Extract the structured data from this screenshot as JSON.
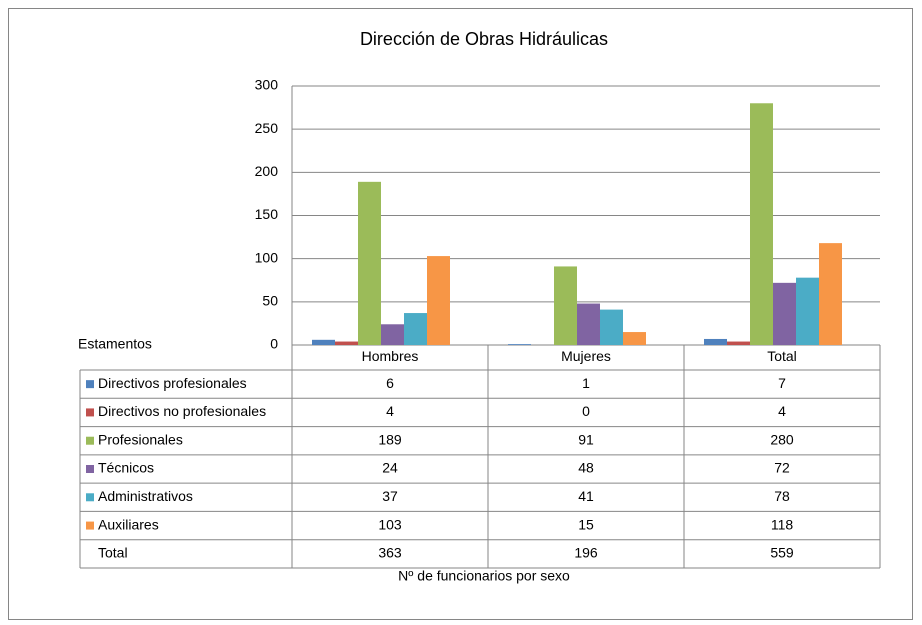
{
  "chart_data": {
    "type": "bar",
    "title": "Dirección de Obras Hidráulicas",
    "x_label": "Nº de funcionarios por sexo",
    "table_header": "Estamentos",
    "categories": [
      "Hombres",
      "Mujeres",
      "Total"
    ],
    "series": [
      {
        "name": "Directivos profesionales",
        "color": "#4f81bd",
        "values": [
          6,
          1,
          7
        ]
      },
      {
        "name": "Directivos no profesionales",
        "color": "#c0504d",
        "values": [
          4,
          0,
          4
        ]
      },
      {
        "name": "Profesionales",
        "color": "#9bbb59",
        "values": [
          189,
          91,
          280
        ]
      },
      {
        "name": "Técnicos",
        "color": "#8064a2",
        "values": [
          24,
          48,
          72
        ]
      },
      {
        "name": "Administrativos",
        "color": "#4bacc6",
        "values": [
          37,
          41,
          78
        ]
      },
      {
        "name": "Auxiliares",
        "color": "#f79646",
        "values": [
          103,
          15,
          118
        ]
      }
    ],
    "total_row": {
      "label": "Total",
      "values": [
        363,
        196,
        559
      ]
    },
    "ylim": [
      0,
      300
    ],
    "yticks": [
      0,
      50,
      100,
      150,
      200,
      250,
      300
    ],
    "grid": true
  }
}
